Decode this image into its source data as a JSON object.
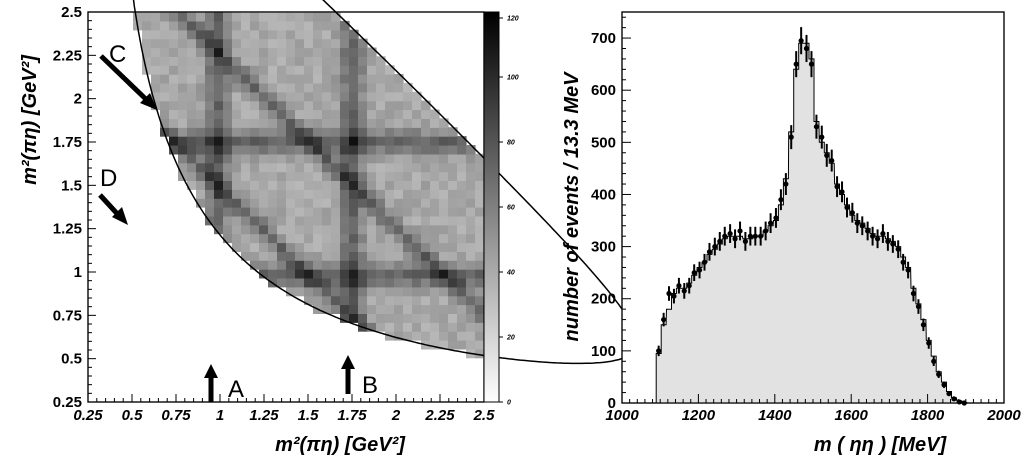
{
  "chart_data": [
    {
      "type": "heatmap",
      "title": "",
      "xlabel": "m²(πη)  [GeV²]",
      "ylabel": "m²(πη)  [GeV²]",
      "xlim": [
        0.25,
        2.5
      ],
      "ylim": [
        0.25,
        2.5
      ],
      "xticks": [
        "0.25",
        "0.5",
        "0.75",
        "1",
        "1.25",
        "1.5",
        "1.75",
        "2",
        "2.25",
        "2.5"
      ],
      "yticks": [
        "0.25",
        "0.5",
        "0.75",
        "1",
        "1.25",
        "1.5",
        "1.75",
        "2",
        "2.25",
        "2.5"
      ],
      "colorbar": {
        "range": [
          0,
          120
        ],
        "ticks": [
          "0",
          "20",
          "40",
          "60",
          "80",
          "100",
          "120"
        ],
        "colormap": "white-to-black"
      },
      "boundary": "Dalitz plot kinematic boundary",
      "bands": [
        {
          "orientation": "vertical",
          "m2": 0.98
        },
        {
          "orientation": "vertical",
          "m2": 1.75
        },
        {
          "orientation": "diagonal",
          "m2": 0.98
        },
        {
          "orientation": "diagonal",
          "m2": 1.75
        },
        {
          "orientation": "horizontal",
          "m2": 0.98
        },
        {
          "orientation": "horizontal",
          "m2": 1.75
        }
      ],
      "annotations": [
        {
          "label": "A",
          "arrow": "up",
          "x": 0.97,
          "y": 0.27
        },
        {
          "label": "B",
          "arrow": "up",
          "x": 1.75,
          "y": 0.27
        },
        {
          "label": "C",
          "arrow": "down-right",
          "x": 0.35,
          "y": 2.2
        },
        {
          "label": "D",
          "arrow": "down-right",
          "x": 0.35,
          "y": 1.5
        }
      ]
    },
    {
      "type": "bar",
      "title": "",
      "xlabel": "m ( ηη )   [MeV]",
      "ylabel": "number of events   /   13.3 MeV",
      "xlim": [
        1000,
        2000
      ],
      "ylim": [
        0,
        750
      ],
      "xticks": [
        "1000",
        "1200",
        "1400",
        "1600",
        "1800",
        "2000"
      ],
      "yticks": [
        "0",
        "100",
        "200",
        "300",
        "400",
        "500",
        "600",
        "700"
      ],
      "x": [
        1096,
        1109,
        1123,
        1136,
        1149,
        1163,
        1176,
        1189,
        1203,
        1216,
        1229,
        1243,
        1256,
        1269,
        1283,
        1296,
        1309,
        1323,
        1336,
        1349,
        1363,
        1376,
        1389,
        1403,
        1416,
        1429,
        1443,
        1456,
        1469,
        1483,
        1496,
        1509,
        1523,
        1536,
        1549,
        1563,
        1576,
        1589,
        1603,
        1616,
        1629,
        1643,
        1656,
        1669,
        1683,
        1696,
        1709,
        1723,
        1736,
        1749,
        1763,
        1776,
        1789,
        1803,
        1816,
        1829,
        1843,
        1856,
        1869,
        1883,
        1896
      ],
      "series": [
        {
          "name": "",
          "style": "histogram-fill",
          "values": [
            95,
            150,
            180,
            210,
            220,
            220,
            230,
            245,
            260,
            270,
            285,
            295,
            305,
            315,
            320,
            320,
            320,
            315,
            315,
            320,
            320,
            330,
            340,
            350,
            380,
            430,
            520,
            640,
            690,
            690,
            660,
            540,
            500,
            480,
            460,
            420,
            400,
            380,
            360,
            350,
            345,
            335,
            325,
            320,
            320,
            315,
            310,
            300,
            280,
            260,
            220,
            190,
            160,
            120,
            90,
            60,
            40,
            22,
            10,
            4,
            1
          ]
        },
        {
          "name": "",
          "style": "points-with-errors",
          "values": [
            100,
            160,
            210,
            205,
            225,
            215,
            225,
            250,
            255,
            270,
            290,
            300,
            310,
            320,
            325,
            315,
            330,
            310,
            320,
            320,
            320,
            330,
            345,
            355,
            390,
            420,
            510,
            650,
            695,
            680,
            650,
            530,
            510,
            475,
            465,
            415,
            405,
            375,
            365,
            345,
            340,
            330,
            320,
            315,
            325,
            310,
            305,
            295,
            270,
            255,
            210,
            185,
            150,
            115,
            80,
            55,
            35,
            18,
            8,
            2,
            0
          ],
          "errors": [
            10,
            13,
            14,
            14,
            15,
            15,
            15,
            16,
            16,
            16,
            17,
            17,
            18,
            18,
            18,
            18,
            18,
            18,
            18,
            18,
            18,
            18,
            19,
            19,
            20,
            21,
            23,
            25,
            26,
            26,
            25,
            23,
            22,
            22,
            21,
            20,
            20,
            19,
            19,
            19,
            18,
            18,
            18,
            18,
            18,
            18,
            17,
            17,
            16,
            16,
            15,
            14,
            12,
            11,
            9,
            7,
            6,
            4,
            3,
            2,
            1
          ]
        }
      ]
    }
  ]
}
